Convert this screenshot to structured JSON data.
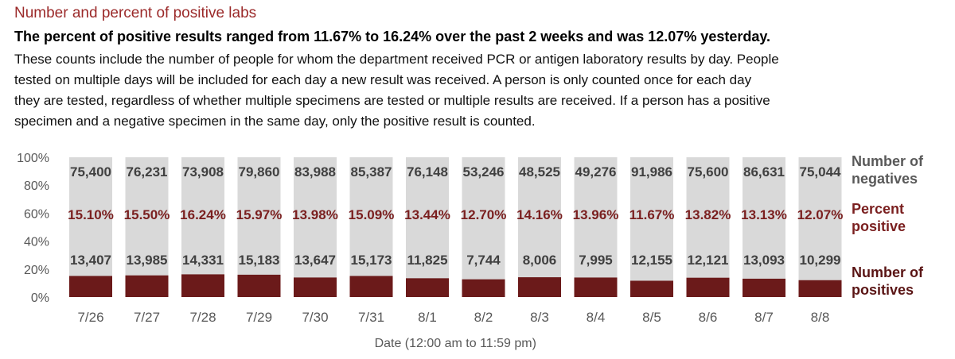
{
  "header": {
    "title": "Number and percent of positive labs",
    "subtitle": "The percent of positive results ranged from 11.67% to 16.24% over the past 2 weeks and was 12.07% yesterday.",
    "description": [
      "These counts include the number of people for whom the department received PCR or antigen laboratory results by day. People",
      "tested on multiple days will be included for each day a new result was received. A person is only counted once for each day",
      "they are tested, regardless of whether multiple specimens are tested or multiple results are received. If a person has a positive",
      "specimen and a negative specimen in the same day, only the positive result is counted."
    ]
  },
  "legend": {
    "negatives": [
      "Number of",
      "negatives"
    ],
    "percent": [
      "Percent",
      "positive"
    ],
    "positives": [
      "Number of",
      "positives"
    ]
  },
  "chart_data": {
    "type": "bar",
    "stacked": "percent",
    "categories": [
      "7/26",
      "7/27",
      "7/28",
      "7/29",
      "7/30",
      "7/31",
      "8/1",
      "8/2",
      "8/3",
      "8/4",
      "8/5",
      "8/6",
      "8/7",
      "8/8"
    ],
    "series": [
      {
        "name": "Number of positives",
        "values": [
          13407,
          13985,
          14331,
          15183,
          13647,
          15173,
          11825,
          7744,
          8006,
          7995,
          12155,
          12121,
          13093,
          10299
        ],
        "color": "#6b1a1a"
      },
      {
        "name": "Number of negatives",
        "values": [
          75400,
          76231,
          73908,
          79860,
          83988,
          85387,
          76148,
          53246,
          48525,
          49276,
          91986,
          75600,
          86631,
          75044
        ],
        "color": "#d9d9d9"
      }
    ],
    "percent_positive": [
      "15.10%",
      "15.50%",
      "16.24%",
      "15.97%",
      "13.98%",
      "15.09%",
      "13.44%",
      "12.70%",
      "14.16%",
      "13.96%",
      "11.67%",
      "13.82%",
      "13.13%",
      "12.07%"
    ],
    "positives_labels": [
      "13,407",
      "13,985",
      "14,331",
      "15,183",
      "13,647",
      "15,173",
      "11,825",
      "7,744",
      "8,006",
      "7,995",
      "12,155",
      "12,121",
      "13,093",
      "10,299"
    ],
    "negatives_labels": [
      "75,400",
      "76,231",
      "73,908",
      "79,860",
      "83,988",
      "85,387",
      "76,148",
      "53,246",
      "48,525",
      "49,276",
      "91,986",
      "75,600",
      "86,631",
      "75,044"
    ],
    "y_ticks": [
      "0%",
      "20%",
      "40%",
      "60%",
      "80%",
      "100%"
    ],
    "ylim": [
      0,
      100
    ],
    "xlabel": "Date (12:00 am to 11:59 pm)",
    "colors": {
      "positives": "#6b1a1a",
      "negatives": "#d9d9d9",
      "percent_text": "#7a1f1f",
      "count_text": "#404040",
      "axis_text": "#595959"
    }
  }
}
